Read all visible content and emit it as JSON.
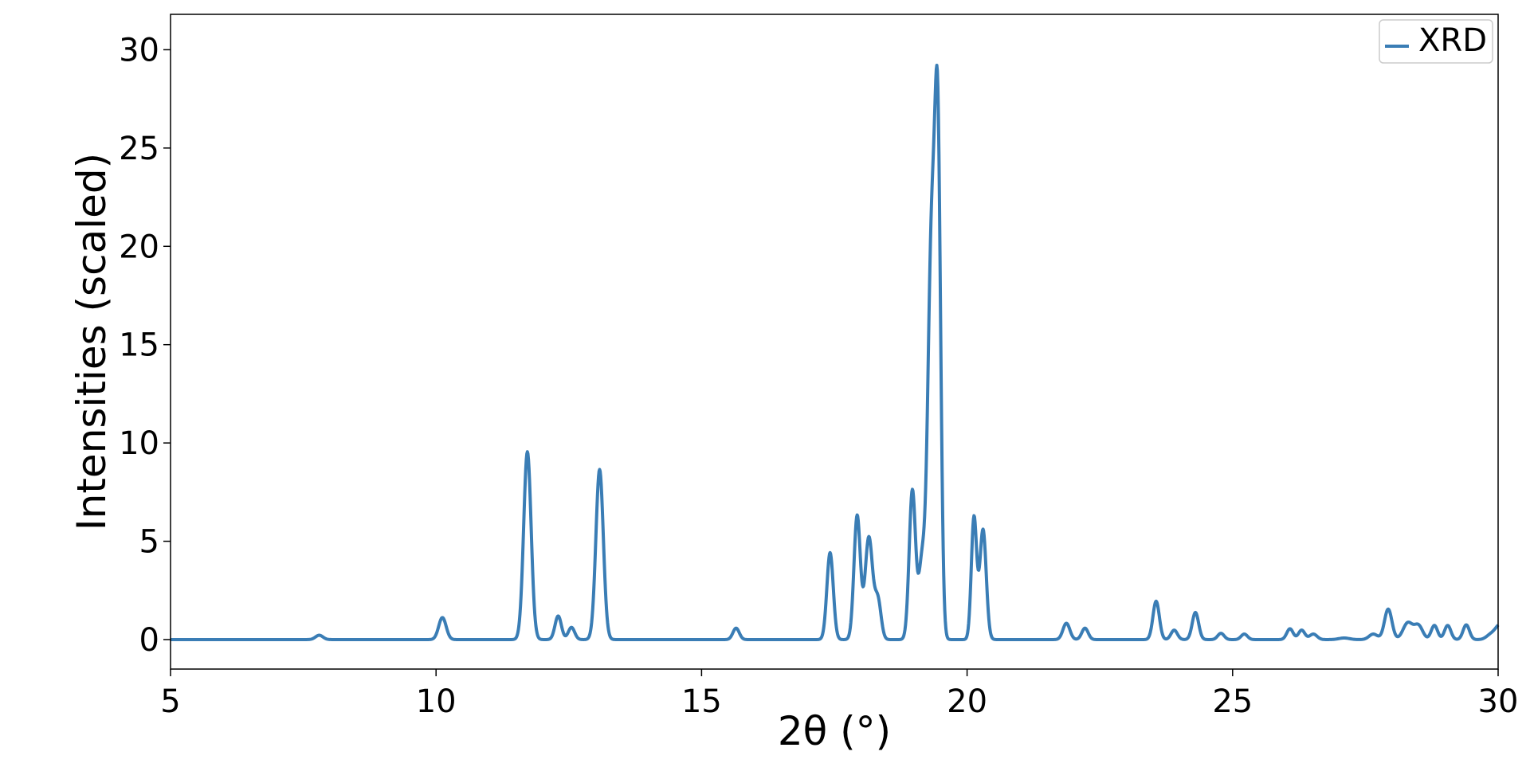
{
  "chart_data": {
    "type": "line",
    "title": "",
    "xlabel": "2θ (°)",
    "ylabel": "Intensities (scaled)",
    "xlim": [
      5,
      30
    ],
    "ylim": [
      -1.5,
      31.8
    ],
    "xticks": [
      5,
      10,
      15,
      20,
      25,
      30
    ],
    "yticks": [
      0,
      5,
      10,
      15,
      20,
      25,
      30
    ],
    "grid": false,
    "legend": {
      "position": "top-right"
    },
    "series": [
      {
        "name": "XRD",
        "color": "#3a7db5",
        "peaks": [
          {
            "center": 7.8,
            "height": 0.22,
            "width": 0.07
          },
          {
            "center": 10.12,
            "height": 1.12,
            "width": 0.07
          },
          {
            "center": 11.72,
            "height": 9.55,
            "width": 0.07
          },
          {
            "center": 12.3,
            "height": 1.2,
            "width": 0.06
          },
          {
            "center": 12.55,
            "height": 0.62,
            "width": 0.06
          },
          {
            "center": 13.08,
            "height": 8.65,
            "width": 0.07
          },
          {
            "center": 15.65,
            "height": 0.58,
            "width": 0.06
          },
          {
            "center": 17.42,
            "height": 4.42,
            "width": 0.06
          },
          {
            "center": 17.93,
            "height": 6.3,
            "width": 0.06
          },
          {
            "center": 18.15,
            "height": 5.2,
            "width": 0.07
          },
          {
            "center": 18.32,
            "height": 2.0,
            "width": 0.06
          },
          {
            "center": 18.97,
            "height": 7.6,
            "width": 0.06
          },
          {
            "center": 19.15,
            "height": 3.8,
            "width": 0.06
          },
          {
            "center": 19.33,
            "height": 20.0,
            "width": 0.07
          },
          {
            "center": 19.45,
            "height": 23.5,
            "width": 0.055
          },
          {
            "center": 20.13,
            "height": 6.2,
            "width": 0.05
          },
          {
            "center": 20.3,
            "height": 5.6,
            "width": 0.06
          },
          {
            "center": 21.87,
            "height": 0.83,
            "width": 0.065
          },
          {
            "center": 22.22,
            "height": 0.58,
            "width": 0.06
          },
          {
            "center": 23.56,
            "height": 1.95,
            "width": 0.06
          },
          {
            "center": 23.9,
            "height": 0.48,
            "width": 0.06
          },
          {
            "center": 24.3,
            "height": 1.38,
            "width": 0.06
          },
          {
            "center": 24.78,
            "height": 0.32,
            "width": 0.06
          },
          {
            "center": 25.22,
            "height": 0.28,
            "width": 0.06
          },
          {
            "center": 26.08,
            "height": 0.55,
            "width": 0.06
          },
          {
            "center": 26.3,
            "height": 0.48,
            "width": 0.06
          },
          {
            "center": 26.52,
            "height": 0.28,
            "width": 0.07
          },
          {
            "center": 27.1,
            "height": 0.08,
            "width": 0.1
          },
          {
            "center": 27.65,
            "height": 0.28,
            "width": 0.08
          },
          {
            "center": 27.93,
            "height": 1.55,
            "width": 0.07
          },
          {
            "center": 28.3,
            "height": 0.85,
            "width": 0.09
          },
          {
            "center": 28.5,
            "height": 0.7,
            "width": 0.08
          },
          {
            "center": 28.8,
            "height": 0.72,
            "width": 0.06
          },
          {
            "center": 29.05,
            "height": 0.72,
            "width": 0.06
          },
          {
            "center": 29.4,
            "height": 0.75,
            "width": 0.06
          },
          {
            "center": 29.85,
            "height": 0.2,
            "width": 0.08
          },
          {
            "center": 30.05,
            "height": 0.8,
            "width": 0.1
          }
        ]
      }
    ]
  }
}
